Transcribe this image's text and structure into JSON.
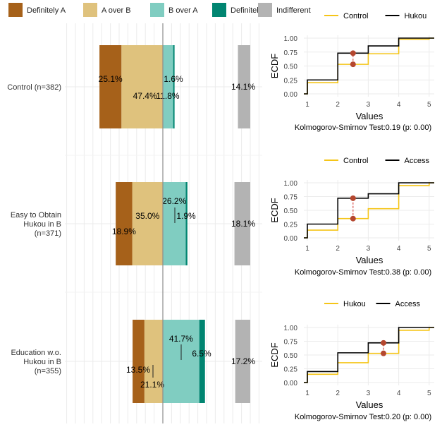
{
  "legend": {
    "items": [
      {
        "label": "Definitely A",
        "color": "#a6611a"
      },
      {
        "label": "A over B",
        "color": "#dfc27d"
      },
      {
        "label": "B over A",
        "color": "#80cdc1"
      },
      {
        "label": "Definitely B",
        "color": "#018571"
      },
      {
        "label": "Indifferent",
        "color": "#b3b3b3"
      }
    ]
  },
  "colors": {
    "control": "#f5c518",
    "treatment": "#000000",
    "marker": "#b5472f",
    "grid": "#ebebeb",
    "center_line": "#8c8c8c"
  },
  "chart_data": [
    {
      "type": "bar",
      "orientation": "horizontal-diverging",
      "categories": [
        "Control (n=382)",
        "Easy to Obtain Hukou in B (n=371)",
        "Education w.o. Hukou in B (n=355)"
      ],
      "category_lines": [
        [
          "Control (n=382)"
        ],
        [
          "Easy to Obtain",
          "Hukou in B",
          "(n=371)"
        ],
        [
          "Education w.o.",
          "Hukou in B",
          "(n=355)"
        ]
      ],
      "series": [
        {
          "name": "Definitely A",
          "values": [
            25.1,
            18.9,
            13.5
          ]
        },
        {
          "name": "A over B",
          "values": [
            47.4,
            35.0,
            21.1
          ]
        },
        {
          "name": "B over A",
          "values": [
            11.8,
            26.2,
            41.7
          ]
        },
        {
          "name": "Definitely B",
          "values": [
            1.6,
            1.9,
            6.5
          ]
        },
        {
          "name": "Indifferent",
          "values": [
            14.1,
            18.1,
            17.2
          ]
        }
      ],
      "labels": [
        {
          "definitely_a": "25.1%",
          "a_over_b": "47.4%",
          "b_over_a": "11.8%",
          "definitely_b": "1.6%",
          "indifferent": "14.1%"
        },
        {
          "definitely_a": "18.9%",
          "a_over_b": "35.0%",
          "b_over_a": "26.2%",
          "definitely_b": "1.9%",
          "indifferent": "18.1%"
        },
        {
          "definitely_a": "13.5%",
          "a_over_b": "21.1%",
          "b_over_a": "41.7%",
          "definitely_b": "6.5%",
          "indifferent": "17.2%"
        }
      ]
    },
    {
      "type": "line",
      "step": true,
      "title": "",
      "xlabel": "Values",
      "ylabel": "ECDF",
      "xlim": [
        1,
        5
      ],
      "ylim": [
        0,
        1
      ],
      "xticks": [
        "1",
        "2",
        "3",
        "4",
        "5"
      ],
      "yticks": [
        "0.00",
        "0.25",
        "0.50",
        "0.75",
        "1.00"
      ],
      "legend": [
        "Control",
        "Hukou"
      ],
      "series": [
        {
          "name": "Control",
          "x": [
            1,
            2,
            3,
            4,
            5
          ],
          "y": [
            0.2,
            0.53,
            0.72,
            0.98,
            1.0
          ]
        },
        {
          "name": "Hukou",
          "x": [
            1,
            2,
            3,
            4,
            5
          ],
          "y": [
            0.25,
            0.73,
            0.86,
            1.0,
            1.0
          ]
        }
      ],
      "ks_x": 2.5,
      "ks_points": [
        0.53,
        0.73
      ],
      "caption": "Kolmogorov-Smirnov Test:0.19 (p: 0.00)"
    },
    {
      "type": "line",
      "step": true,
      "title": "",
      "xlabel": "Values",
      "ylabel": "ECDF",
      "xlim": [
        1,
        5
      ],
      "ylim": [
        0,
        1
      ],
      "xticks": [
        "1",
        "2",
        "3",
        "4",
        "5"
      ],
      "yticks": [
        "0.00",
        "0.25",
        "0.50",
        "0.75",
        "1.00"
      ],
      "legend": [
        "Control",
        "Access"
      ],
      "series": [
        {
          "name": "Control",
          "x": [
            1,
            2,
            3,
            4,
            5
          ],
          "y": [
            0.14,
            0.35,
            0.53,
            0.95,
            1.0
          ]
        },
        {
          "name": "Access",
          "x": [
            1,
            2,
            3,
            4,
            5
          ],
          "y": [
            0.25,
            0.72,
            0.8,
            1.0,
            1.0
          ]
        }
      ],
      "ks_x": 2.5,
      "ks_points": [
        0.35,
        0.72
      ],
      "caption": "Kolmogorov-Smirnov Test:0.38 (p: 0.00)"
    },
    {
      "type": "line",
      "step": true,
      "title": "",
      "xlabel": "Values",
      "ylabel": "ECDF",
      "xlim": [
        1,
        5
      ],
      "ylim": [
        0,
        1
      ],
      "xticks": [
        "1",
        "2",
        "3",
        "4",
        "5"
      ],
      "yticks": [
        "0.00",
        "0.25",
        "0.50",
        "0.75",
        "1.00"
      ],
      "legend": [
        "Hukou",
        "Access"
      ],
      "series": [
        {
          "name": "Hukou",
          "x": [
            1,
            2,
            3,
            4,
            5
          ],
          "y": [
            0.15,
            0.36,
            0.53,
            0.95,
            1.0
          ]
        },
        {
          "name": "Access",
          "x": [
            1,
            2,
            3,
            4,
            5
          ],
          "y": [
            0.2,
            0.54,
            0.72,
            1.0,
            1.0
          ]
        }
      ],
      "ks_x": 3.5,
      "ks_points": [
        0.53,
        0.72
      ],
      "caption": "Kolmogorov-Smirnov Test:0.20 (p: 0.00)"
    }
  ]
}
